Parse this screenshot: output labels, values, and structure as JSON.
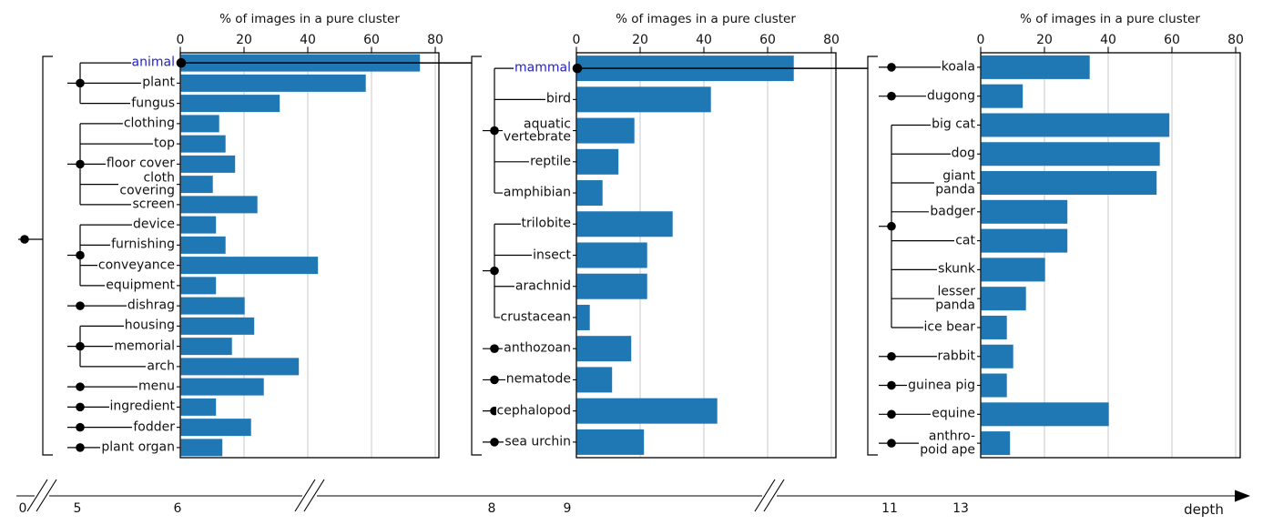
{
  "figure": {
    "axis_title": "% of images in a pure cluster",
    "x_tick_labels": [
      "0",
      "20",
      "40",
      "60",
      "80"
    ],
    "depth_axis": {
      "label": "depth",
      "tick_labels": [
        "0",
        "5",
        "6",
        "8",
        "9",
        "11",
        "13"
      ],
      "has_breaks": true,
      "breaks_between": [
        [
          "0",
          "5"
        ],
        [
          "6",
          "8"
        ],
        [
          "9",
          "11"
        ]
      ]
    },
    "colors": {
      "bar": "#1f77b4",
      "highlight_label": "#2222cc",
      "grid": "#c8c8c8",
      "line": "#000000"
    }
  },
  "chart_data": [
    {
      "type": "bar",
      "orientation": "horizontal",
      "title": "% of images in a pure cluster",
      "xlim": [
        0,
        81
      ],
      "x_ticks": [
        0,
        20,
        40,
        60,
        80
      ],
      "grid": true,
      "label_depth": 6,
      "parent_node_depth": 5,
      "root_depth": 0,
      "highlight": "animal",
      "categories": [
        "animal",
        "plant",
        "fungus",
        "clothing",
        "top",
        "floor cover",
        "cloth\ncovering",
        "screen",
        "device",
        "furnishing",
        "conveyance",
        "equipment",
        "dishrag",
        "housing",
        "memorial",
        "arch",
        "menu",
        "ingredient",
        "fodder",
        "plant organ"
      ],
      "values": [
        75,
        58,
        31,
        12,
        14,
        17,
        10,
        24,
        11,
        14,
        43,
        11,
        20,
        23,
        16,
        37,
        26,
        11,
        22,
        13
      ],
      "tree_groups": [
        [
          0,
          1,
          2
        ],
        [
          3,
          4,
          5,
          6,
          7
        ],
        [
          8,
          9,
          10,
          11
        ],
        [
          12
        ],
        [
          13,
          14,
          15
        ],
        [
          16
        ],
        [
          17
        ],
        [
          18
        ],
        [
          19
        ]
      ]
    },
    {
      "type": "bar",
      "orientation": "horizontal",
      "title": "% of images in a pure cluster",
      "xlim": [
        0,
        81
      ],
      "x_ticks": [
        0,
        20,
        40,
        60,
        80
      ],
      "grid": true,
      "label_depth": 9,
      "parent_node_depth": 8,
      "highlight": "mammal",
      "categories": [
        "mammal",
        "bird",
        "aquatic\nvertebrate",
        "reptile",
        "amphibian",
        "trilobite",
        "insect",
        "arachnid",
        "crustacean",
        "anthozoan",
        "nematode",
        "cephalopod",
        "sea urchin"
      ],
      "values": [
        68,
        42,
        18,
        13,
        8,
        30,
        22,
        22,
        4,
        17,
        11,
        44,
        21
      ],
      "tree_groups": [
        [
          0,
          1,
          2,
          3,
          4
        ],
        [
          5,
          6,
          7,
          8
        ],
        [
          9
        ],
        [
          10
        ],
        [
          11
        ],
        [
          12
        ]
      ]
    },
    {
      "type": "bar",
      "orientation": "horizontal",
      "title": "% of images in a pure cluster",
      "xlim": [
        0,
        81
      ],
      "x_ticks": [
        0,
        20,
        40,
        60,
        80
      ],
      "grid": true,
      "label_depth": 13,
      "parent_node_depth": 11,
      "highlight": null,
      "categories": [
        "koala",
        "dugong",
        "big cat",
        "dog",
        "giant\npanda",
        "badger",
        "cat",
        "skunk",
        "lesser\npanda",
        "ice bear",
        "rabbit",
        "guinea pig",
        "equine",
        "anthro-\npoid ape"
      ],
      "values": [
        34,
        13,
        59,
        56,
        55,
        27,
        27,
        20,
        14,
        8,
        10,
        8,
        40,
        9
      ],
      "tree_groups": [
        [
          0
        ],
        [
          1
        ],
        [
          2,
          3,
          4,
          5,
          6,
          7,
          8,
          9
        ],
        [
          10
        ],
        [
          11
        ],
        [
          12
        ],
        [
          13
        ]
      ]
    }
  ]
}
